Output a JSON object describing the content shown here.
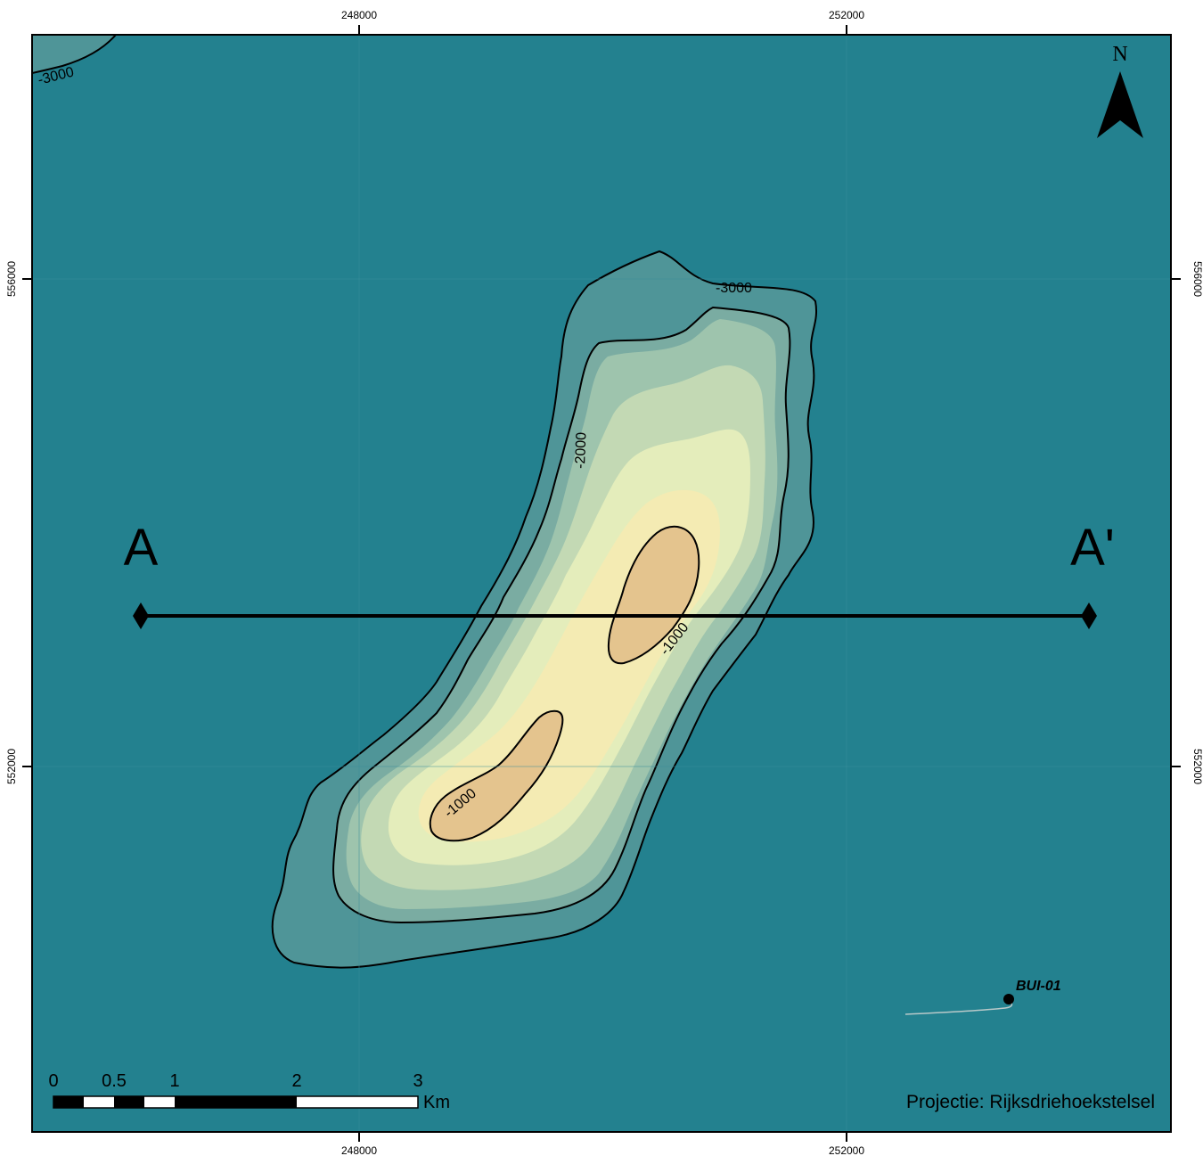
{
  "map": {
    "grid": {
      "x_ticks": [
        "248000",
        "252000"
      ],
      "y_ticks": [
        "556000",
        "552000"
      ]
    },
    "contour_labels": {
      "c3000_corner": "-3000",
      "c3000_main": "-3000",
      "c2000": "-2000",
      "c1000_upper": "-1000",
      "c1000_lower": "-1000"
    },
    "cross_section": {
      "start_label": "A",
      "end_label": "A'"
    },
    "north_arrow": {
      "label": "N"
    },
    "well": {
      "name": "BUI-01"
    },
    "scale_bar": {
      "labels": [
        "0",
        "0.5",
        "1",
        "2",
        "3"
      ],
      "unit": "Km"
    },
    "projection": "Projectie: Rijksdriehoekstelsel",
    "colors": {
      "background": "#23818f",
      "band1": "#4f9598",
      "band2": "#7aaca2",
      "band3": "#9ec4ad",
      "band4": "#c3d9b4",
      "band5": "#e4edbb",
      "band6": "#f4ebb3",
      "band7": "#e4c48e"
    }
  }
}
